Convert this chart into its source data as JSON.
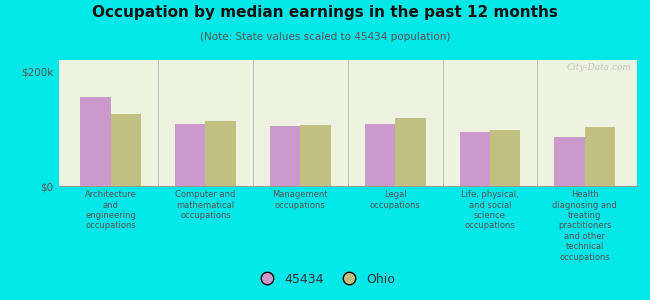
{
  "title": "Occupation by median earnings in the past 12 months",
  "subtitle": "(Note: State values scaled to 45434 population)",
  "background_color": "#00e8e8",
  "plot_bg_color": "#eef2e0",
  "categories": [
    "Architecture\nand\nengineering\noccupations",
    "Computer and\nmathematical\noccupations",
    "Management\noccupations",
    "Legal\noccupations",
    "Life, physical,\nand social\nscience\noccupations",
    "Health\ndiagnosing and\ntreating\npractitioners\nand other\ntechnical\noccupations"
  ],
  "values_45434": [
    155000,
    108000,
    105000,
    108000,
    95000,
    85000
  ],
  "values_ohio": [
    125000,
    113000,
    107000,
    118000,
    98000,
    103000
  ],
  "color_45434": "#cc99cc",
  "color_ohio": "#c0c080",
  "yticks": [
    0,
    200000
  ],
  "ytick_labels": [
    "$0",
    "$200k"
  ],
  "legend_labels": [
    "45434",
    "Ohio"
  ],
  "watermark": "City-Data.com"
}
